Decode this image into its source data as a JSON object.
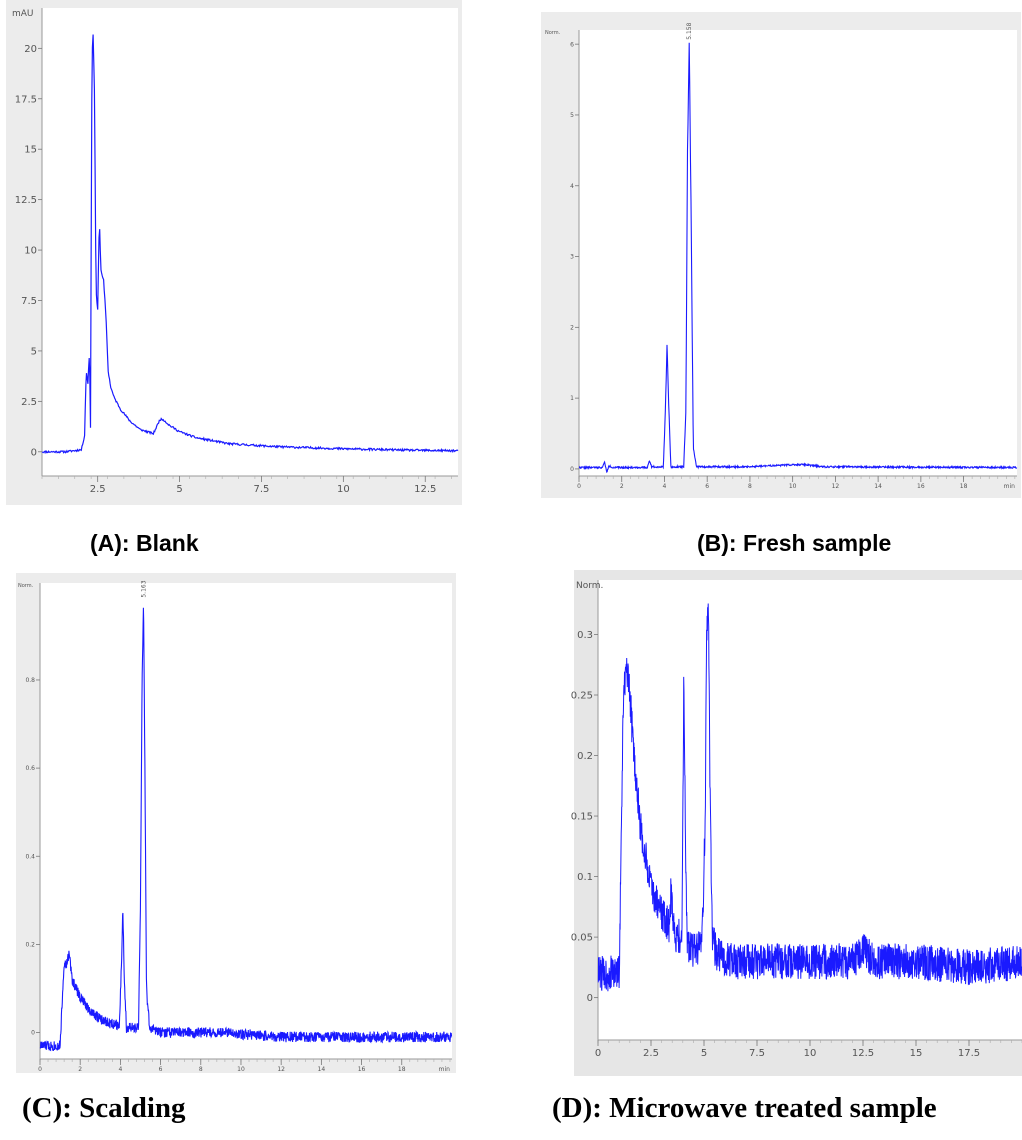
{
  "chart_data": [
    {
      "type": "line",
      "caption": "(A): Blank",
      "ylabel": "mAU",
      "xlabel": "",
      "xlim": [
        0.8,
        13.5
      ],
      "ylim": [
        -1.2,
        22
      ],
      "xticks": [
        "2.5",
        "5",
        "7.5",
        "10",
        "12.5"
      ],
      "xtick_values": [
        2.5,
        5,
        7.5,
        10,
        12.5
      ],
      "yticks": [
        "0",
        "2.5",
        "5",
        "7.5",
        "10",
        "12.5",
        "15",
        "17.5",
        "20"
      ],
      "ytick_values": [
        0,
        2.5,
        5,
        7.5,
        10,
        12.5,
        15,
        17.5,
        20
      ],
      "noise": 0.05,
      "series": [
        {
          "x": [
            0.8,
            1.5,
            2.0,
            2.1,
            2.15,
            2.2,
            2.25,
            2.28,
            2.32,
            2.35,
            2.4,
            2.45,
            2.5,
            2.55,
            2.6,
            2.68,
            2.75,
            2.82,
            2.9,
            3.0,
            3.2,
            3.5,
            3.8,
            4.2,
            4.4,
            4.5,
            4.7,
            5.0,
            5.5,
            6.5,
            8.0,
            10.0,
            12.0,
            13.5
          ],
          "y": [
            0,
            0,
            0.1,
            0.8,
            4.0,
            3.4,
            5.0,
            1.2,
            17.5,
            21.3,
            18.0,
            8.0,
            7.0,
            11.5,
            9.0,
            8.5,
            6.8,
            4.0,
            3.2,
            2.7,
            2.1,
            1.5,
            1.1,
            0.9,
            1.6,
            1.6,
            1.3,
            1.0,
            0.7,
            0.4,
            0.25,
            0.15,
            0.08,
            0.05
          ]
        }
      ]
    },
    {
      "type": "line",
      "caption": "(B): Fresh sample",
      "ylabel": "Norm.",
      "xlabel": "min",
      "peak_label": "5.158",
      "xlim": [
        0,
        20.5
      ],
      "ylim": [
        -0.1,
        6.2
      ],
      "xticks": [
        "0",
        "2",
        "4",
        "6",
        "8",
        "10",
        "12",
        "14",
        "16",
        "18"
      ],
      "xtick_values": [
        0,
        2,
        4,
        6,
        8,
        10,
        12,
        14,
        16,
        18
      ],
      "yticks": [
        "0",
        "1",
        "2",
        "3",
        "4",
        "5",
        "6"
      ],
      "ytick_values": [
        0,
        1,
        2,
        3,
        4,
        5,
        6
      ],
      "noise": 0.012,
      "series": [
        {
          "x": [
            0,
            1.1,
            1.2,
            1.3,
            1.4,
            1.6,
            3.2,
            3.3,
            3.4,
            3.95,
            4.05,
            4.12,
            4.2,
            4.3,
            4.9,
            5.0,
            5.08,
            5.16,
            5.25,
            5.35,
            5.5,
            8.0,
            10.0,
            10.5,
            11.5,
            20.5
          ],
          "y": [
            0.02,
            0.02,
            0.1,
            -0.05,
            0.04,
            0.02,
            0.02,
            0.12,
            0.03,
            0.03,
            0.9,
            1.75,
            0.9,
            0.03,
            0.03,
            0.8,
            4.5,
            6.02,
            3.5,
            0.3,
            0.03,
            0.03,
            0.06,
            0.06,
            0.03,
            0.02
          ]
        }
      ]
    },
    {
      "type": "line",
      "caption": "(C): Scalding",
      "ylabel": "Norm.",
      "xlabel": "min",
      "peak_label": "5.163",
      "xlim": [
        0,
        20.5
      ],
      "ylim": [
        -0.06,
        1.02
      ],
      "xticks": [
        "0",
        "2",
        "4",
        "6",
        "8",
        "10",
        "12",
        "14",
        "16",
        "18"
      ],
      "xtick_values": [
        0,
        2,
        4,
        6,
        8,
        10,
        12,
        14,
        16,
        18
      ],
      "yticks": [
        "0",
        "0.2",
        "0.4",
        "0.6",
        "0.8"
      ],
      "ytick_values": [
        0,
        0.2,
        0.4,
        0.6,
        0.8
      ],
      "noise": 0.012,
      "series": [
        {
          "x": [
            0,
            1.0,
            1.2,
            1.3,
            1.45,
            1.6,
            2.0,
            2.5,
            3.0,
            3.5,
            3.95,
            4.05,
            4.12,
            4.2,
            4.3,
            4.9,
            5.0,
            5.08,
            5.15,
            5.22,
            5.3,
            5.45,
            6.0,
            9.0,
            12.0,
            20.5
          ],
          "y": [
            -0.03,
            -0.03,
            0.16,
            0.15,
            0.18,
            0.12,
            0.08,
            0.05,
            0.03,
            0.02,
            0.02,
            0.15,
            0.28,
            0.12,
            0.01,
            0.01,
            0.3,
            0.8,
            0.98,
            0.6,
            0.1,
            0.01,
            0.0,
            0.0,
            -0.01,
            -0.01
          ]
        }
      ]
    },
    {
      "type": "line",
      "caption": "(D): Microwave treated sample",
      "ylabel": "Norm.",
      "xlabel": "",
      "xlim": [
        0,
        20
      ],
      "ylim": [
        -0.035,
        0.345
      ],
      "xticks": [
        "0",
        "2.5",
        "5",
        "7.5",
        "10",
        "12.5",
        "15",
        "17.5"
      ],
      "xtick_values": [
        0,
        2.5,
        5,
        7.5,
        10,
        12.5,
        15,
        17.5
      ],
      "yticks": [
        "0",
        "0.05",
        "0.1",
        "0.15",
        "0.2",
        "0.25",
        "0.3"
      ],
      "ytick_values": [
        0,
        0.05,
        0.1,
        0.15,
        0.2,
        0.25,
        0.3
      ],
      "noise": 0.015,
      "series": [
        {
          "x": [
            0,
            1.0,
            1.2,
            1.35,
            1.5,
            1.7,
            2.0,
            2.5,
            3.0,
            3.35,
            3.45,
            3.55,
            3.7,
            3.95,
            4.0,
            4.05,
            4.12,
            4.2,
            4.3,
            4.9,
            5.05,
            5.12,
            5.2,
            5.3,
            5.4,
            5.6,
            6.5,
            8.0,
            10.0,
            12.0,
            12.5,
            13.0,
            15.0,
            17.5,
            20.0
          ],
          "y": [
            0.02,
            0.02,
            0.25,
            0.27,
            0.25,
            0.2,
            0.14,
            0.09,
            0.07,
            0.06,
            0.09,
            0.06,
            0.05,
            0.05,
            0.14,
            0.27,
            0.14,
            0.05,
            0.04,
            0.04,
            0.14,
            0.3,
            0.33,
            0.15,
            0.05,
            0.035,
            0.03,
            0.03,
            0.03,
            0.03,
            0.04,
            0.03,
            0.03,
            0.025,
            0.03
          ]
        }
      ]
    }
  ]
}
